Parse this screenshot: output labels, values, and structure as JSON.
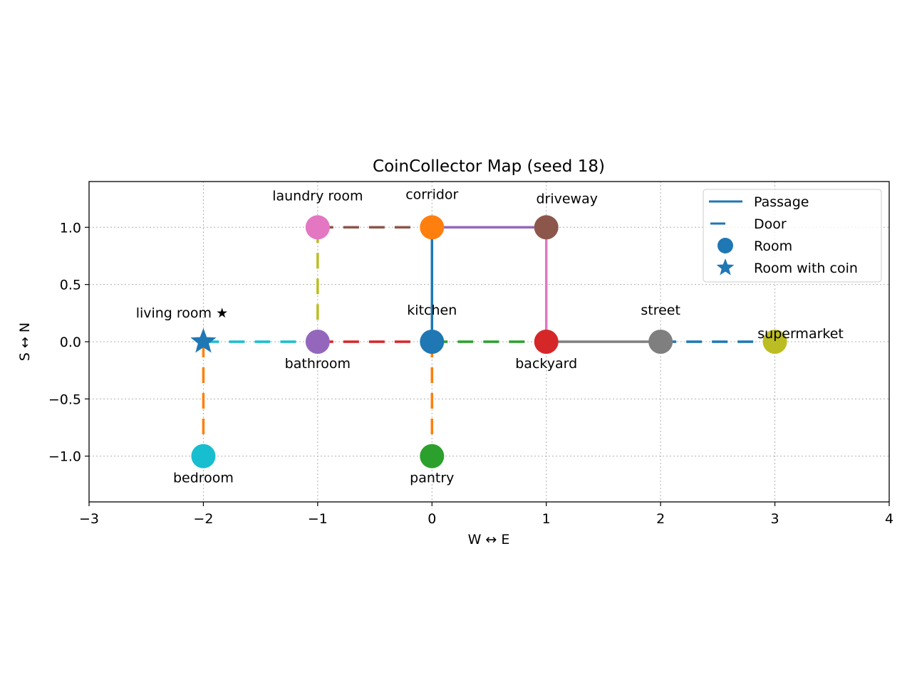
{
  "chart_data": {
    "type": "scatter",
    "title": "CoinCollector Map (seed 18)",
    "xlabel": "W ↔ E",
    "ylabel": "S ↔ N",
    "xlim": [
      -3,
      4
    ],
    "ylim": [
      -1.4,
      1.4
    ],
    "xticks": [
      -3,
      -2,
      -1,
      0,
      1,
      2,
      3,
      4
    ],
    "yticks": [
      -1.0,
      -0.5,
      0.0,
      0.5,
      1.0
    ],
    "xtick_labels": [
      "−3",
      "−2",
      "−1",
      "0",
      "1",
      "2",
      "3",
      "4"
    ],
    "ytick_labels": [
      "−1.0",
      "−0.5",
      "0.0",
      "0.5",
      "1.0"
    ],
    "grid": true,
    "legend_position": "top-right",
    "legend": [
      {
        "label": "Passage",
        "kind": "passage"
      },
      {
        "label": "Door",
        "kind": "door"
      },
      {
        "label": "Room",
        "kind": "room"
      },
      {
        "label": "Room with coin",
        "kind": "coin"
      }
    ],
    "legend_color": "#1f77b4",
    "rooms": [
      {
        "name": "laundry room",
        "label": "laundry room",
        "x": -1,
        "y": 1,
        "color": "#e377c2",
        "coin": false,
        "label_pos": "above"
      },
      {
        "name": "corridor",
        "label": "corridor",
        "x": 0,
        "y": 1,
        "color": "#ff7f0e",
        "coin": false,
        "label_pos": "above-high"
      },
      {
        "name": "driveway",
        "label": "driveway",
        "x": 1,
        "y": 1,
        "color": "#8c564b",
        "coin": false,
        "label_pos": "above-right"
      },
      {
        "name": "living room",
        "label": "living room ★",
        "x": -2,
        "y": 0,
        "color": "#1f77b4",
        "coin": true,
        "label_pos": "above-left"
      },
      {
        "name": "bathroom",
        "label": "bathroom",
        "x": -1,
        "y": 0,
        "color": "#9467bd",
        "coin": false,
        "label_pos": "below"
      },
      {
        "name": "kitchen",
        "label": "kitchen",
        "x": 0,
        "y": 0,
        "color": "#1f77b4",
        "coin": false,
        "label_pos": "above"
      },
      {
        "name": "backyard",
        "label": "backyard",
        "x": 1,
        "y": 0,
        "color": "#d62728",
        "coin": false,
        "label_pos": "below"
      },
      {
        "name": "street",
        "label": "street",
        "x": 2,
        "y": 0,
        "color": "#7f7f7f",
        "coin": false,
        "label_pos": "above"
      },
      {
        "name": "supermarket",
        "label": "supermarket",
        "x": 3,
        "y": 0,
        "color": "#bcbd22",
        "coin": false,
        "label_pos": "above-right-low"
      },
      {
        "name": "bedroom",
        "label": "bedroom",
        "x": -2,
        "y": -1,
        "color": "#17becf",
        "coin": false,
        "label_pos": "below"
      },
      {
        "name": "pantry",
        "label": "pantry",
        "x": 0,
        "y": -1,
        "color": "#2ca02c",
        "coin": false,
        "label_pos": "below"
      }
    ],
    "connections": [
      {
        "from": "laundry room",
        "to": "corridor",
        "kind": "door",
        "color": "#8c564b"
      },
      {
        "from": "corridor",
        "to": "driveway",
        "kind": "passage",
        "color": "#9467bd"
      },
      {
        "from": "corridor",
        "to": "kitchen",
        "kind": "passage",
        "color": "#1f77b4"
      },
      {
        "from": "driveway",
        "to": "backyard",
        "kind": "passage",
        "color": "#e377c2"
      },
      {
        "from": "laundry room",
        "to": "bathroom",
        "kind": "door",
        "color": "#bcbd22"
      },
      {
        "from": "living room",
        "to": "bathroom",
        "kind": "door",
        "color": "#17becf"
      },
      {
        "from": "bathroom",
        "to": "kitchen",
        "kind": "door",
        "color": "#d62728"
      },
      {
        "from": "kitchen",
        "to": "backyard",
        "kind": "door",
        "color": "#2ca02c"
      },
      {
        "from": "backyard",
        "to": "street",
        "kind": "passage",
        "color": "#7f7f7f"
      },
      {
        "from": "street",
        "to": "supermarket",
        "kind": "door",
        "color": "#1f77b4"
      },
      {
        "from": "living room",
        "to": "bedroom",
        "kind": "door",
        "color": "#ff7f0e"
      },
      {
        "from": "kitchen",
        "to": "pantry",
        "kind": "door",
        "color": "#ff7f0e"
      }
    ]
  }
}
